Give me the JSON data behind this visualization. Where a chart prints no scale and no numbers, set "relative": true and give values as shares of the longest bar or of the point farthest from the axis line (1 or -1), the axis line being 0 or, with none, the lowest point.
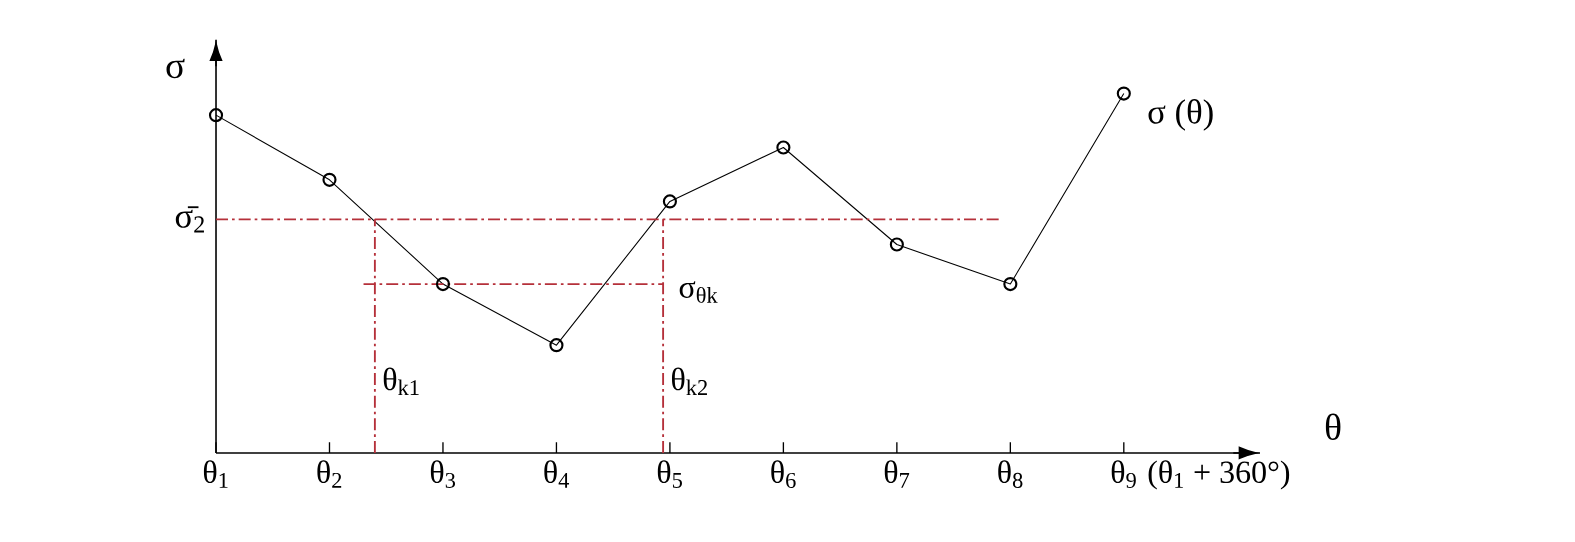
{
  "chart_data": {
    "type": "line",
    "relative": true,
    "xlabel": "θ",
    "ylabel": "σ",
    "x": [
      1,
      2,
      3,
      4,
      5,
      6,
      7,
      8,
      9
    ],
    "xlim": [
      1,
      10.2
    ],
    "xticks": [
      {
        "value": 1,
        "label": "θ$_{1}$"
      },
      {
        "value": 2,
        "label": "θ$_{2}$"
      },
      {
        "value": 3,
        "label": "θ$_{3}$"
      },
      {
        "value": 4,
        "label": "θ$_{4}$"
      },
      {
        "value": 5,
        "label": "θ$_{5}$"
      },
      {
        "value": 6,
        "label": "θ$_{6}$"
      },
      {
        "value": 7,
        "label": "θ$_{7}$"
      },
      {
        "value": 8,
        "label": "θ$_{8}$"
      },
      {
        "value": 9,
        "label": "θ$_{9}$"
      }
    ],
    "annotations": [
      "(θ$_{1}$ + 360°)"
    ],
    "series": [
      {
        "name": "σ (θ)",
        "color": "#000000",
        "values": [
          0.94,
          0.76,
          0.47,
          0.3,
          0.7,
          0.85,
          0.58,
          0.47,
          1
        ]
      }
    ],
    "marker": "circle",
    "grid": false,
    "ref_lines": [
      {
        "axis": "y",
        "value": 0.65,
        "label": "σ̄$_{2}$",
        "color": "#b5303a",
        "line_style": "dashdot"
      },
      {
        "axis": "y",
        "value": 0.47,
        "label": "σ$_{θk}$",
        "color": "#b5303a",
        "line_style": "dashdot"
      },
      {
        "axis": "x",
        "value": 2.4,
        "label": "θ$_{k1}$",
        "color": "#b5303a",
        "line_style": "dashdot"
      },
      {
        "axis": "x",
        "value": 4.94,
        "label": "θ$_{k2}$",
        "color": "#b5303a",
        "line_style": "dashdot"
      }
    ]
  }
}
